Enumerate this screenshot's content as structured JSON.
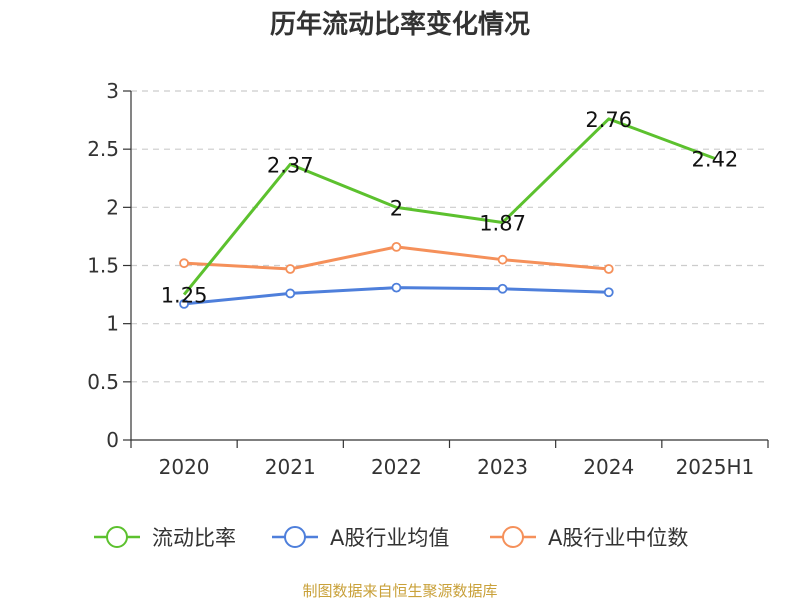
{
  "chart_data": {
    "type": "line",
    "title": "历年流动比率变化情况",
    "categories": [
      "2020",
      "2021",
      "2022",
      "2023",
      "2024",
      "2025H1"
    ],
    "ylim": [
      0,
      3
    ],
    "yticks": [
      "0",
      "0.5",
      "1",
      "1.5",
      "2",
      "2.5",
      "3"
    ],
    "ytick_values": [
      0,
      0.5,
      1,
      1.5,
      2,
      2.5,
      3
    ],
    "grid": true,
    "legend_position": "bottom",
    "series": [
      {
        "name": "流动比率",
        "color": "#5cc12e",
        "values": [
          1.25,
          2.37,
          2,
          1.87,
          2.76,
          2.42
        ],
        "labels": [
          "1.25",
          "2.37",
          "2",
          "1.87",
          "2.76",
          "2.42"
        ]
      },
      {
        "name": "A股行业均值",
        "color": "#4e7fdb",
        "values": [
          1.17,
          1.26,
          1.31,
          1.3,
          1.27,
          null
        ]
      },
      {
        "name": "A股行业中位数",
        "color": "#f5905a",
        "values": [
          1.52,
          1.47,
          1.66,
          1.55,
          1.47,
          null
        ]
      }
    ]
  },
  "source_text": "制图数据来自恒生聚源数据库"
}
